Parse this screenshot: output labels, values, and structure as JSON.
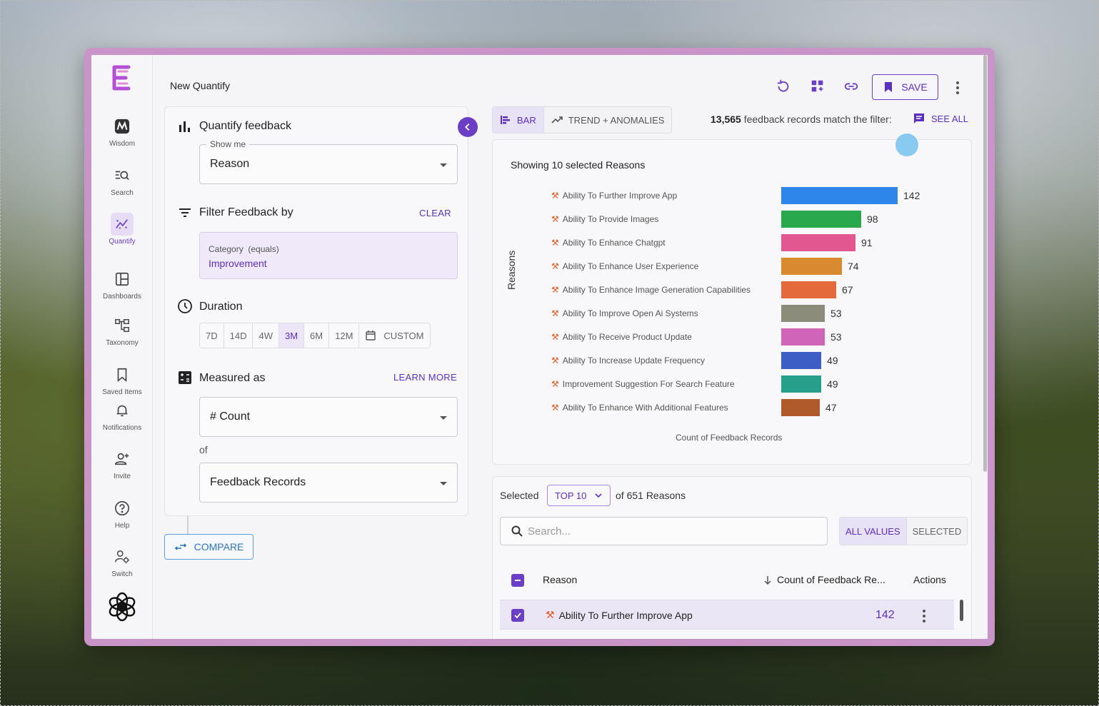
{
  "header": {
    "title": "New Quantify",
    "save_label": "SAVE"
  },
  "rail": [
    {
      "label": "Wisdom",
      "icon": "wisdom-icon"
    },
    {
      "label": "Search",
      "icon": "search-list-icon"
    },
    {
      "label": "Quantify",
      "icon": "quantify-icon",
      "active": true
    },
    {
      "label": "Dashboards",
      "icon": "dashboard-icon"
    },
    {
      "label": "Taxonomy",
      "icon": "taxonomy-icon"
    },
    {
      "label": "Saved Items",
      "icon": "bookmark-icon"
    },
    {
      "label": "Notifications",
      "icon": "bell-icon"
    },
    {
      "label": "Invite",
      "icon": "add-user-icon"
    },
    {
      "label": "Help",
      "icon": "help-icon"
    },
    {
      "label": "Switch",
      "icon": "switch-icon"
    }
  ],
  "panel": {
    "quantify_title": "Quantify feedback",
    "show_me_legend": "Show me",
    "show_me_value": "Reason",
    "filter_title": "Filter Feedback by",
    "clear_label": "CLEAR",
    "filter_key": "Category  (equals)",
    "filter_value": "Improvement",
    "duration_title": "Duration",
    "durations": [
      "7D",
      "14D",
      "4W",
      "3M",
      "6M",
      "12M"
    ],
    "duration_active": "3M",
    "custom_label": "CUSTOM",
    "measured_title": "Measured as",
    "learn_more_label": "LEARN MORE",
    "measure_value": "# Count",
    "of_label": "of",
    "records_value": "Feedback Records",
    "compare_label": "COMPARE"
  },
  "view_tabs": [
    {
      "label": "BAR",
      "active": true
    },
    {
      "label": "TREND + ANOMALIES",
      "active": false
    }
  ],
  "match": {
    "count": "13,565",
    "text": " feedback records match the filter:",
    "see_all": "SEE ALL"
  },
  "chart_data": {
    "type": "bar",
    "orientation": "horizontal",
    "title": "Showing 10 selected Reasons",
    "ylabel": "Reasons",
    "xlabel": "Count of Feedback Records",
    "categories": [
      "Ability To Further Improve App",
      "Ability To Provide Images",
      "Ability To Enhance Chatgpt",
      "Ability To Enhance User Experience",
      "Ability To Enhance Image Generation Capabilities",
      "Ability To Improve Open Ai Systems",
      "Ability To Receive Product Update",
      "Ability To Increase Update Frequency",
      "Improvement Suggestion For Search Feature",
      "Ability To Enhance With Additional Features"
    ],
    "values": [
      142,
      98,
      91,
      74,
      67,
      53,
      53,
      49,
      49,
      47
    ],
    "colors": [
      "#2f86ea",
      "#2aa84e",
      "#e2578f",
      "#d98a2e",
      "#e46a3c",
      "#8c8c7a",
      "#cf64b9",
      "#3d5fc5",
      "#26a08a",
      "#b05a2c"
    ],
    "xlim": [
      0,
      150
    ],
    "grid": false,
    "legend": "none"
  },
  "table": {
    "selected_label": "Selected",
    "top_value": "TOP 10",
    "of_text": "of 651 Reasons",
    "search_placeholder": "Search...",
    "toggle_all": "ALL VALUES",
    "toggle_selected": "SELECTED",
    "col_reason": "Reason",
    "col_count": "Count of Feedback Re...",
    "col_actions": "Actions",
    "rows": [
      {
        "reason": "Ability To Further Improve App",
        "count": "142"
      }
    ]
  }
}
